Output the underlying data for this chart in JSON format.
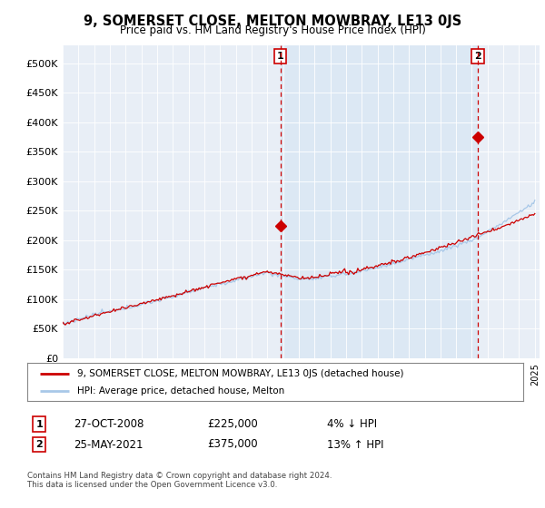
{
  "title": "9, SOMERSET CLOSE, MELTON MOWBRAY, LE13 0JS",
  "subtitle": "Price paid vs. HM Land Registry's House Price Index (HPI)",
  "ylabel_ticks": [
    "£0",
    "£50K",
    "£100K",
    "£150K",
    "£200K",
    "£250K",
    "£300K",
    "£350K",
    "£400K",
    "£450K",
    "£500K"
  ],
  "y_values": [
    0,
    50000,
    100000,
    150000,
    200000,
    250000,
    300000,
    350000,
    400000,
    450000,
    500000
  ],
  "x_start_year": 1995,
  "x_end_year": 2025,
  "hpi_color": "#a8c8e8",
  "price_color": "#cc0000",
  "shade_color": "#dce8f4",
  "sale1_x": 2008.83,
  "sale1_price": 225000,
  "sale2_x": 2021.37,
  "sale2_price": 375000,
  "sale1_date": "27-OCT-2008",
  "sale2_date": "25-MAY-2021",
  "sale1_pct": "4% ↓ HPI",
  "sale2_pct": "13% ↑ HPI",
  "legend_line1": "9, SOMERSET CLOSE, MELTON MOWBRAY, LE13 0JS (detached house)",
  "legend_line2": "HPI: Average price, detached house, Melton",
  "footnote": "Contains HM Land Registry data © Crown copyright and database right 2024.\nThis data is licensed under the Open Government Licence v3.0.",
  "fig_bg": "#ffffff",
  "plot_bg": "#e8eef6"
}
